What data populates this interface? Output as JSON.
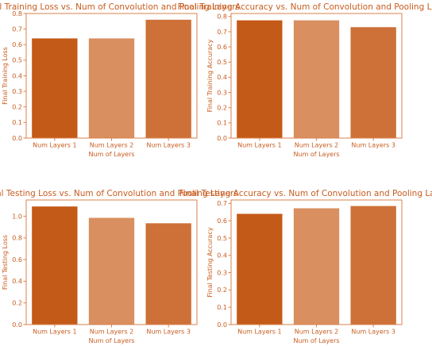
{
  "colors": {
    "text": "#c75c1f",
    "axis": "#d9824e",
    "bars": [
      "#c45a18",
      "#d98f60",
      "#cd7138"
    ]
  },
  "chart_data": [
    {
      "type": "bar",
      "title": "Final Training Loss vs. Num of Convolution and Pooling Layers",
      "xlabel": "Num of Layers",
      "ylabel": "Final Training Loss",
      "categories": [
        "Num Layers 1",
        "Num Layers 2",
        "Num Layers 3"
      ],
      "values": [
        0.64,
        0.64,
        0.76
      ],
      "ylim": [
        0,
        0.8
      ],
      "yticks": [
        0.0,
        0.1,
        0.2,
        0.3,
        0.4,
        0.5,
        0.6,
        0.7,
        0.8
      ],
      "ytick_labels": [
        "0.0",
        "0.1",
        "0.2",
        "0.3",
        "0.4",
        "0.5",
        "0.6",
        "0.7",
        "0.8"
      ],
      "grid": false
    },
    {
      "type": "bar",
      "title": "Final Training Accuracy vs. Num of Convolution and Pooling Layers",
      "xlabel": "Num of Layers",
      "ylabel": "Final Training Accuracy",
      "categories": [
        "Num Layers 1",
        "Num Layers 2",
        "Num Layers 3"
      ],
      "values": [
        0.775,
        0.775,
        0.73
      ],
      "ylim": [
        0,
        0.82
      ],
      "yticks": [
        0.0,
        0.1,
        0.2,
        0.3,
        0.4,
        0.5,
        0.6,
        0.7,
        0.8
      ],
      "ytick_labels": [
        "0.0",
        "0.1",
        "0.2",
        "0.3",
        "0.4",
        "0.5",
        "0.6",
        "0.7",
        "0.8"
      ],
      "grid": false
    },
    {
      "type": "bar",
      "title": "Final Testing Loss vs. Num of Convolution and Pooling Layers",
      "xlabel": "Num of Layers",
      "ylabel": "Final Testing Loss",
      "categories": [
        "Num Layers 1",
        "Num Layers 2",
        "Num Layers 3"
      ],
      "values": [
        1.09,
        0.985,
        0.935
      ],
      "ylim": [
        0,
        1.15
      ],
      "yticks": [
        0.0,
        0.2,
        0.4,
        0.6,
        0.8,
        1.0
      ],
      "ytick_labels": [
        "0.0",
        "0.2",
        "0.4",
        "0.6",
        "0.8",
        "1.0"
      ],
      "grid": false
    },
    {
      "type": "bar",
      "title": "Final Testing Accuracy vs. Num of Convolution and Pooling Layers",
      "xlabel": "Num of Layers",
      "ylabel": "Final Testing Accuracy",
      "categories": [
        "Num Layers 1",
        "Num Layers 2",
        "Num Layers 3"
      ],
      "values": [
        0.64,
        0.672,
        0.685
      ],
      "ylim": [
        0,
        0.72
      ],
      "yticks": [
        0.0,
        0.1,
        0.2,
        0.3,
        0.4,
        0.5,
        0.6,
        0.7
      ],
      "ytick_labels": [
        "0.0",
        "0.1",
        "0.2",
        "0.3",
        "0.4",
        "0.5",
        "0.6",
        "0.7"
      ],
      "grid": false
    }
  ]
}
